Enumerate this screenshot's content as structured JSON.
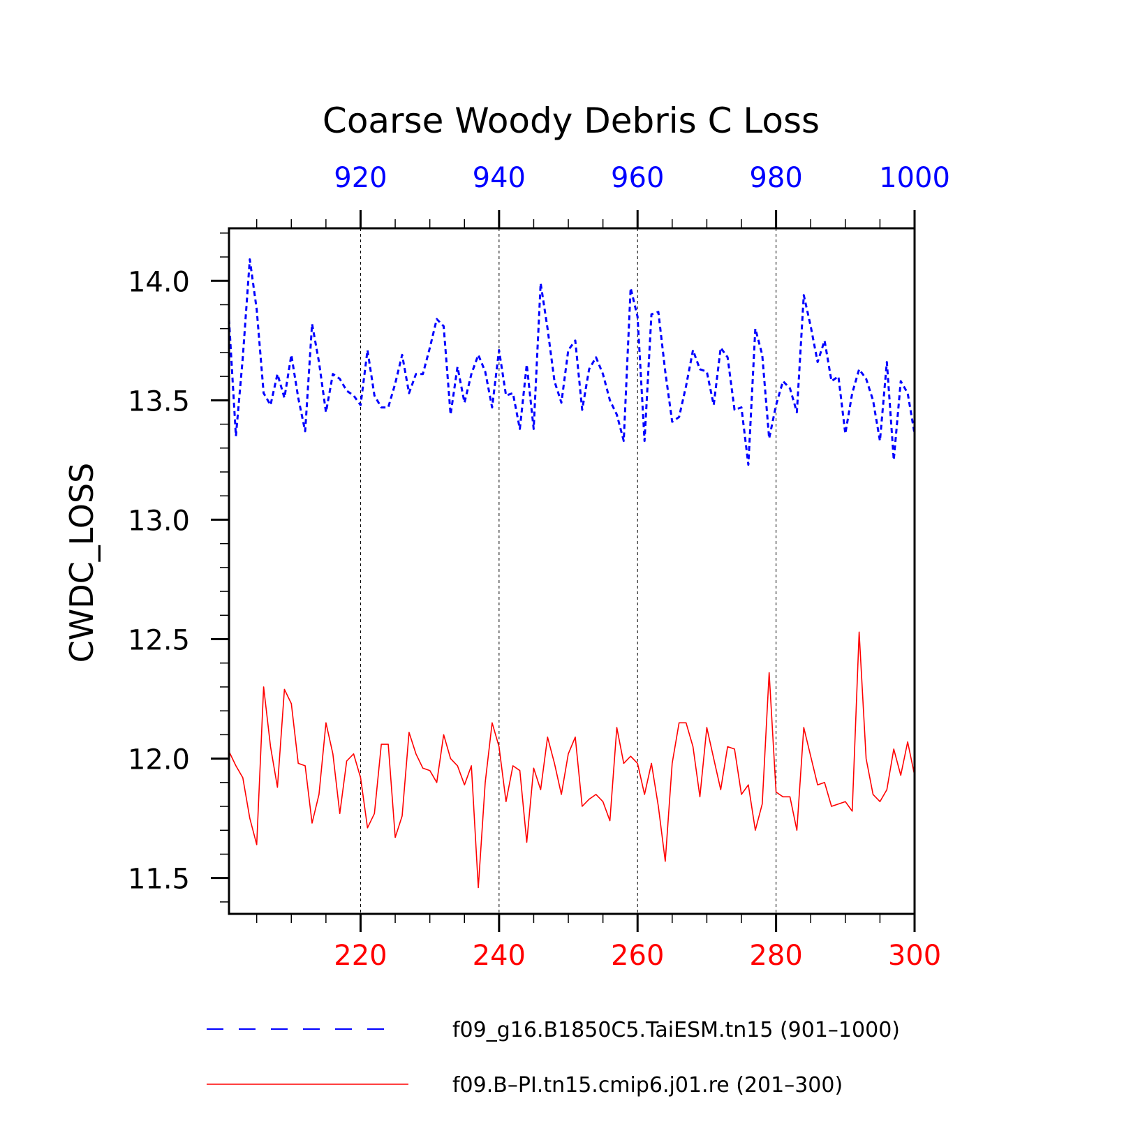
{
  "chart_data": {
    "type": "line",
    "title": "Coarse Woody Debris C Loss",
    "ylabel": "CWDC_LOSS",
    "ylim": [
      11.35,
      14.22
    ],
    "yticks": [
      "11.5",
      "12.0",
      "12.5",
      "13.0",
      "13.5",
      "14.0"
    ],
    "grid": "vertical dashed lines at major x ticks",
    "legend_position": "bottom",
    "series": [
      {
        "name": "f09_g16.B1850C5.TaiESM.tn15 (901–1000)",
        "axis": "top",
        "color": "#0000ff",
        "style": "dashed",
        "x_start": 901,
        "xlim": [
          901,
          1000
        ],
        "xticks": [
          "920",
          "940",
          "960",
          "980",
          "1000"
        ],
        "values": [
          13.84,
          13.35,
          13.68,
          14.09,
          13.88,
          13.53,
          13.48,
          13.61,
          13.51,
          13.69,
          13.51,
          13.37,
          13.82,
          13.66,
          13.45,
          13.61,
          13.59,
          13.54,
          13.52,
          13.48,
          13.71,
          13.52,
          13.47,
          13.47,
          13.57,
          13.69,
          13.53,
          13.61,
          13.61,
          13.72,
          13.84,
          13.81,
          13.44,
          13.64,
          13.49,
          13.61,
          13.69,
          13.62,
          13.47,
          13.71,
          13.52,
          13.53,
          13.38,
          13.65,
          13.38,
          13.99,
          13.8,
          13.58,
          13.49,
          13.71,
          13.75,
          13.46,
          13.63,
          13.68,
          13.61,
          13.5,
          13.44,
          13.33,
          13.97,
          13.85,
          13.33,
          13.86,
          13.87,
          13.62,
          13.41,
          13.43,
          13.56,
          13.71,
          13.63,
          13.62,
          13.48,
          13.72,
          13.68,
          13.46,
          13.47,
          13.23,
          13.8,
          13.69,
          13.34,
          13.48,
          13.58,
          13.55,
          13.45,
          13.94,
          13.81,
          13.66,
          13.75,
          13.58,
          13.6,
          13.36,
          13.53,
          13.63,
          13.59,
          13.5,
          13.33,
          13.66,
          13.25,
          13.58,
          13.53,
          13.36
        ]
      },
      {
        "name": "f09.B–PI.tn15.cmip6.j01.re (201–300)",
        "axis": "bottom",
        "color": "#ff0000",
        "style": "solid",
        "x_start": 201,
        "xlim": [
          201,
          300
        ],
        "xticks": [
          "220",
          "240",
          "260",
          "280",
          "300"
        ],
        "values": [
          12.03,
          11.97,
          11.92,
          11.75,
          11.64,
          12.3,
          12.05,
          11.88,
          12.29,
          12.23,
          11.98,
          11.97,
          11.73,
          11.85,
          12.15,
          12.02,
          11.77,
          11.99,
          12.02,
          11.92,
          11.71,
          11.77,
          12.06,
          12.06,
          11.67,
          11.76,
          12.11,
          12.02,
          11.96,
          11.95,
          11.9,
          12.1,
          12.0,
          11.97,
          11.89,
          11.97,
          11.46,
          11.9,
          12.15,
          12.05,
          11.82,
          11.97,
          11.95,
          11.65,
          11.96,
          11.87,
          12.09,
          11.98,
          11.85,
          12.02,
          12.09,
          11.8,
          11.83,
          11.85,
          11.82,
          11.74,
          12.13,
          11.98,
          12.01,
          11.98,
          11.85,
          11.98,
          11.8,
          11.57,
          11.98,
          12.15,
          12.15,
          12.05,
          11.84,
          12.13,
          12.0,
          11.87,
          12.05,
          12.04,
          11.85,
          11.89,
          11.7,
          11.81,
          12.36,
          11.86,
          11.84,
          11.84,
          11.7,
          12.13,
          12.01,
          11.89,
          11.9,
          11.8,
          11.81,
          11.82,
          11.78,
          12.53,
          12.0,
          11.85,
          11.82,
          11.87,
          12.04,
          11.93,
          12.07,
          11.93
        ]
      }
    ]
  }
}
